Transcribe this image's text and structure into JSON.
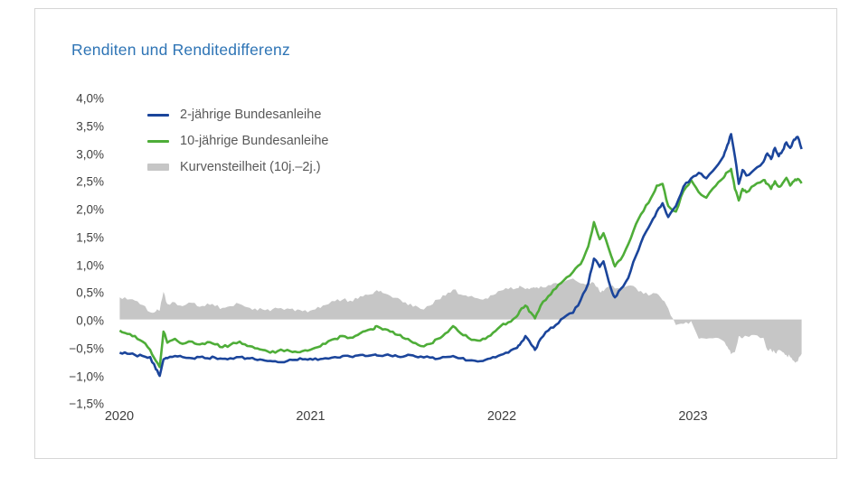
{
  "card": {
    "border_color": "#d6d6d6",
    "background": "#ffffff"
  },
  "chart_data": {
    "type": "line",
    "title": "Renditen und Renditedifferenz",
    "title_color": "#2e74b5",
    "xlabel": "",
    "ylabel": "",
    "grid": false,
    "legend_position": "inside-top-left",
    "xlim": [
      2020.0,
      2023.58
    ],
    "ylim": [
      -1.5,
      4.0
    ],
    "x_ticks": [
      {
        "value": 2020,
        "label": "2020"
      },
      {
        "value": 2021,
        "label": "2021"
      },
      {
        "value": 2022,
        "label": "2022"
      },
      {
        "value": 2023,
        "label": "2023"
      }
    ],
    "y_ticks": [
      {
        "value": 4.0,
        "label": "4,0%"
      },
      {
        "value": 3.5,
        "label": "3,5%"
      },
      {
        "value": 3.0,
        "label": "3,0%"
      },
      {
        "value": 2.5,
        "label": "2,5%"
      },
      {
        "value": 2.0,
        "label": "2,0%"
      },
      {
        "value": 1.5,
        "label": "1,5%"
      },
      {
        "value": 1.0,
        "label": "1,0%"
      },
      {
        "value": 0.5,
        "label": "0,5%"
      },
      {
        "value": 0.0,
        "label": "0,0%"
      },
      {
        "value": -0.5,
        "label": "−0,5%"
      },
      {
        "value": -1.0,
        "label": "−1,0%"
      },
      {
        "value": -1.5,
        "label": "−1,5%"
      }
    ],
    "x": [
      2020.0,
      2020.04,
      2020.08,
      2020.12,
      2020.16,
      2020.19,
      2020.21,
      2020.23,
      2020.25,
      2020.29,
      2020.33,
      2020.38,
      2020.42,
      2020.46,
      2020.5,
      2020.54,
      2020.58,
      2020.63,
      2020.67,
      2020.71,
      2020.75,
      2020.79,
      2020.83,
      2020.88,
      2020.92,
      2020.96,
      2021.0,
      2021.04,
      2021.08,
      2021.13,
      2021.17,
      2021.21,
      2021.25,
      2021.29,
      2021.33,
      2021.35,
      2021.38,
      2021.42,
      2021.46,
      2021.5,
      2021.54,
      2021.58,
      2021.63,
      2021.67,
      2021.71,
      2021.75,
      2021.79,
      2021.83,
      2021.88,
      2021.92,
      2021.96,
      2022.0,
      2022.04,
      2022.08,
      2022.1,
      2022.13,
      2022.16,
      2022.18,
      2022.21,
      2022.25,
      2022.29,
      2022.33,
      2022.38,
      2022.42,
      2022.46,
      2022.49,
      2022.52,
      2022.54,
      2022.58,
      2022.6,
      2022.63,
      2022.67,
      2022.71,
      2022.75,
      2022.79,
      2022.82,
      2022.85,
      2022.88,
      2022.92,
      2022.96,
      2023.0,
      2023.04,
      2023.08,
      2023.13,
      2023.17,
      2023.19,
      2023.21,
      2023.23,
      2023.25,
      2023.27,
      2023.29,
      2023.33,
      2023.38,
      2023.4,
      2023.42,
      2023.44,
      2023.46,
      2023.48,
      2023.5,
      2023.52,
      2023.54,
      2023.56,
      2023.58
    ],
    "series": [
      {
        "name": "2-jährige Bundesanleihe",
        "type": "line",
        "color": "#1b459b",
        "values": [
          -0.6,
          -0.62,
          -0.64,
          -0.66,
          -0.68,
          -0.9,
          -1.02,
          -0.72,
          -0.7,
          -0.66,
          -0.68,
          -0.7,
          -0.68,
          -0.7,
          -0.69,
          -0.71,
          -0.7,
          -0.68,
          -0.7,
          -0.72,
          -0.73,
          -0.75,
          -0.77,
          -0.75,
          -0.73,
          -0.72,
          -0.71,
          -0.73,
          -0.7,
          -0.68,
          -0.66,
          -0.67,
          -0.65,
          -0.66,
          -0.64,
          -0.65,
          -0.66,
          -0.65,
          -0.67,
          -0.66,
          -0.65,
          -0.67,
          -0.69,
          -0.71,
          -0.68,
          -0.66,
          -0.7,
          -0.74,
          -0.76,
          -0.73,
          -0.68,
          -0.64,
          -0.6,
          -0.52,
          -0.46,
          -0.3,
          -0.45,
          -0.55,
          -0.35,
          -0.2,
          -0.1,
          0.03,
          0.12,
          0.35,
          0.65,
          1.1,
          0.95,
          1.05,
          0.55,
          0.4,
          0.55,
          0.75,
          1.15,
          1.5,
          1.75,
          1.95,
          2.1,
          1.85,
          2.05,
          2.4,
          2.55,
          2.65,
          2.55,
          2.75,
          2.95,
          3.15,
          3.35,
          2.95,
          2.45,
          2.7,
          2.6,
          2.7,
          2.85,
          3.0,
          2.9,
          3.1,
          2.95,
          3.05,
          3.2,
          3.1,
          3.25,
          3.3,
          3.08
        ]
      },
      {
        "name": "10-jährige Bundesanleihe",
        "type": "line",
        "color": "#4ead38",
        "values": [
          -0.2,
          -0.26,
          -0.3,
          -0.4,
          -0.55,
          -0.75,
          -0.86,
          -0.22,
          -0.42,
          -0.35,
          -0.44,
          -0.4,
          -0.45,
          -0.41,
          -0.45,
          -0.5,
          -0.46,
          -0.4,
          -0.48,
          -0.52,
          -0.55,
          -0.6,
          -0.57,
          -0.55,
          -0.58,
          -0.57,
          -0.55,
          -0.5,
          -0.44,
          -0.35,
          -0.3,
          -0.33,
          -0.28,
          -0.21,
          -0.18,
          -0.12,
          -0.18,
          -0.22,
          -0.28,
          -0.35,
          -0.42,
          -0.48,
          -0.44,
          -0.35,
          -0.25,
          -0.12,
          -0.25,
          -0.33,
          -0.38,
          -0.35,
          -0.24,
          -0.12,
          -0.05,
          0.04,
          0.15,
          0.25,
          0.12,
          0.02,
          0.25,
          0.42,
          0.56,
          0.7,
          0.86,
          1.0,
          1.32,
          1.76,
          1.45,
          1.56,
          1.15,
          0.96,
          1.08,
          1.36,
          1.72,
          1.96,
          2.2,
          2.42,
          2.45,
          2.05,
          1.95,
          2.32,
          2.52,
          2.3,
          2.2,
          2.42,
          2.56,
          2.66,
          2.72,
          2.36,
          2.15,
          2.36,
          2.3,
          2.42,
          2.52,
          2.45,
          2.36,
          2.5,
          2.4,
          2.46,
          2.56,
          2.42,
          2.5,
          2.54,
          2.46
        ]
      },
      {
        "name": "Kurvensteilheit (10j.–2j.)",
        "type": "area",
        "color": "#c6c6c6",
        "values": [
          0.4,
          0.36,
          0.34,
          0.26,
          0.13,
          0.15,
          0.16,
          0.5,
          0.28,
          0.31,
          0.24,
          0.3,
          0.23,
          0.29,
          0.24,
          0.21,
          0.24,
          0.28,
          0.22,
          0.2,
          0.18,
          0.15,
          0.2,
          0.2,
          0.15,
          0.15,
          0.16,
          0.23,
          0.26,
          0.33,
          0.36,
          0.34,
          0.37,
          0.45,
          0.46,
          0.53,
          0.48,
          0.43,
          0.39,
          0.31,
          0.23,
          0.19,
          0.25,
          0.36,
          0.43,
          0.54,
          0.45,
          0.41,
          0.38,
          0.38,
          0.44,
          0.52,
          0.55,
          0.56,
          0.61,
          0.55,
          0.57,
          0.57,
          0.6,
          0.62,
          0.66,
          0.67,
          0.74,
          0.65,
          0.67,
          0.66,
          0.5,
          0.51,
          0.6,
          0.56,
          0.53,
          0.61,
          0.57,
          0.46,
          0.45,
          0.47,
          0.35,
          0.2,
          -0.1,
          -0.08,
          -0.03,
          -0.35,
          -0.35,
          -0.33,
          -0.39,
          -0.49,
          -0.63,
          -0.59,
          -0.3,
          -0.34,
          -0.3,
          -0.28,
          -0.33,
          -0.55,
          -0.54,
          -0.6,
          -0.55,
          -0.59,
          -0.64,
          -0.68,
          -0.75,
          -0.76,
          -0.62
        ]
      }
    ]
  }
}
